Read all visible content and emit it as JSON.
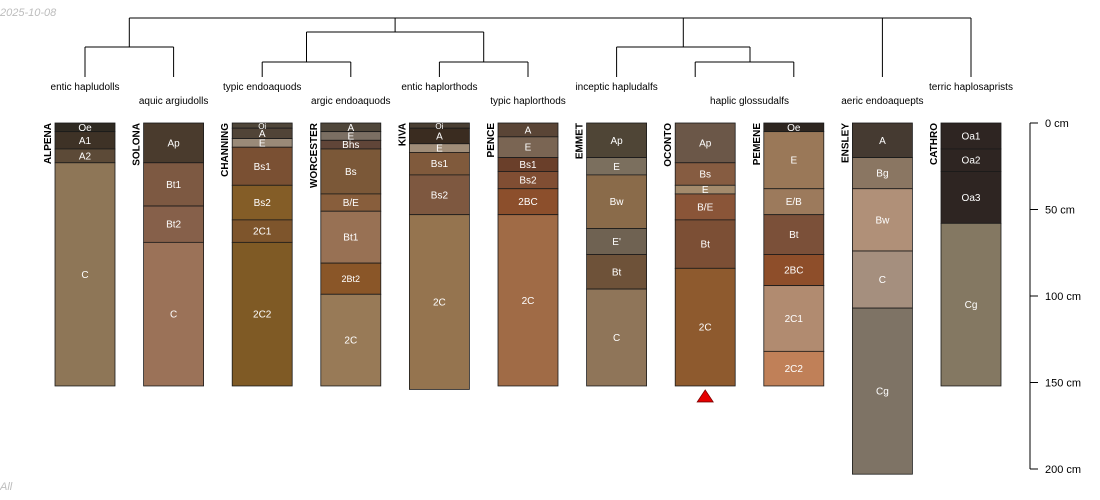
{
  "meta": {
    "date_stamp": "2025-10-08",
    "footer_stamp": "All",
    "marker_color": "#e60000"
  },
  "depth_axis": {
    "max_depth": 200,
    "ticks": [
      {
        "depth": 0,
        "label": "0 cm"
      },
      {
        "depth": 50,
        "label": "50 cm"
      },
      {
        "depth": 100,
        "label": "100 cm"
      },
      {
        "depth": 150,
        "label": "150 cm"
      },
      {
        "depth": 200,
        "label": "200 cm"
      }
    ]
  },
  "profiles": [
    {
      "name": "ALPENA",
      "taxon": "entic hapludolls",
      "horizons": [
        {
          "label": "Oe",
          "top": 0,
          "bottom": 5,
          "color": "#2f2a22"
        },
        {
          "label": "A1",
          "top": 5,
          "bottom": 15,
          "color": "#3e3226"
        },
        {
          "label": "A2",
          "top": 15,
          "bottom": 23,
          "color": "#5c4a37"
        },
        {
          "label": "C",
          "top": 23,
          "bottom": 152,
          "color": "#8e7657"
        }
      ]
    },
    {
      "name": "SOLONA",
      "taxon": "aquic argiudolls",
      "horizons": [
        {
          "label": "Ap",
          "top": 0,
          "bottom": 23,
          "color": "#4a3b2d"
        },
        {
          "label": "Bt1",
          "top": 23,
          "bottom": 48,
          "color": "#7d5942"
        },
        {
          "label": "Bt2",
          "top": 48,
          "bottom": 69,
          "color": "#86604a"
        },
        {
          "label": "C",
          "top": 69,
          "bottom": 152,
          "color": "#9b7258"
        }
      ]
    },
    {
      "name": "CHANNING",
      "taxon": "typic endoaquods",
      "horizons": [
        {
          "label": "Oi",
          "top": 0,
          "bottom": 3,
          "color": "#4f4639"
        },
        {
          "label": "A",
          "top": 3,
          "bottom": 9,
          "color": "#514437"
        },
        {
          "label": "E",
          "top": 9,
          "bottom": 14,
          "color": "#9a8a78"
        },
        {
          "label": "Bs1",
          "top": 14,
          "bottom": 36,
          "color": "#7a5033"
        },
        {
          "label": "Bs2",
          "top": 36,
          "bottom": 56,
          "color": "#845d27"
        },
        {
          "label": "2C1",
          "top": 56,
          "bottom": 69,
          "color": "#7e552c"
        },
        {
          "label": "2C2",
          "top": 69,
          "bottom": 152,
          "color": "#7f5a25"
        }
      ]
    },
    {
      "name": "WORCESTER",
      "taxon": "argic endoaquods",
      "horizons": [
        {
          "label": "A",
          "top": 0,
          "bottom": 5,
          "color": "#4f463a"
        },
        {
          "label": "E",
          "top": 5,
          "bottom": 10,
          "color": "#7b6f63"
        },
        {
          "label": "Bhs",
          "top": 10,
          "bottom": 15,
          "color": "#604538"
        },
        {
          "label": "Bs",
          "top": 15,
          "bottom": 41,
          "color": "#7b5838"
        },
        {
          "label": "B/E",
          "top": 41,
          "bottom": 51,
          "color": "#885e3c"
        },
        {
          "label": "Bt1",
          "top": 51,
          "bottom": 81,
          "color": "#987154"
        },
        {
          "label": "2Bt2",
          "top": 81,
          "bottom": 99,
          "color": "#8a5628"
        },
        {
          "label": "2C",
          "top": 99,
          "bottom": 152,
          "color": "#987a57"
        }
      ]
    },
    {
      "name": "KIVA",
      "taxon": "entic haplorthods",
      "horizons": [
        {
          "label": "Oi",
          "top": 0,
          "bottom": 3,
          "color": "#4a3f33"
        },
        {
          "label": "A",
          "top": 3,
          "bottom": 12,
          "color": "#3a2c20"
        },
        {
          "label": "E",
          "top": 12,
          "bottom": 17,
          "color": "#a08d78"
        },
        {
          "label": "Bs1",
          "top": 17,
          "bottom": 30,
          "color": "#805a3c"
        },
        {
          "label": "Bs2",
          "top": 30,
          "bottom": 53,
          "color": "#7e5840"
        },
        {
          "label": "2C",
          "top": 53,
          "bottom": 154,
          "color": "#95744f"
        }
      ]
    },
    {
      "name": "PENCE",
      "taxon": "typic haplorthods",
      "horizons": [
        {
          "label": "A",
          "top": 0,
          "bottom": 8,
          "color": "#5a4536"
        },
        {
          "label": "E",
          "top": 8,
          "bottom": 20,
          "color": "#7a6553"
        },
        {
          "label": "Bs1",
          "top": 20,
          "bottom": 28,
          "color": "#6a3f2a"
        },
        {
          "label": "Bs2",
          "top": 28,
          "bottom": 38,
          "color": "#804e33"
        },
        {
          "label": "2BC",
          "top": 38,
          "bottom": 53,
          "color": "#8c4f2c"
        },
        {
          "label": "2C",
          "top": 53,
          "bottom": 152,
          "color": "#a06b46"
        }
      ]
    },
    {
      "name": "EMMET",
      "taxon": "inceptic hapludalfs",
      "horizons": [
        {
          "label": "Ap",
          "top": 0,
          "bottom": 20,
          "color": "#4f4536"
        },
        {
          "label": "E",
          "top": 20,
          "bottom": 30,
          "color": "#7b6f5e"
        },
        {
          "label": "Bw",
          "top": 30,
          "bottom": 61,
          "color": "#8a6b4a"
        },
        {
          "label": "E'",
          "top": 61,
          "bottom": 76,
          "color": "#6f6252"
        },
        {
          "label": "Bt",
          "top": 76,
          "bottom": 96,
          "color": "#6e5239"
        },
        {
          "label": "C",
          "top": 96,
          "bottom": 152,
          "color": "#8f7559"
        }
      ]
    },
    {
      "name": "OCONTO",
      "taxon": "haplic glossudalfs",
      "marker": true,
      "horizons": [
        {
          "label": "Ap",
          "top": 0,
          "bottom": 23,
          "color": "#6b5748"
        },
        {
          "label": "Bs",
          "top": 23,
          "bottom": 36,
          "color": "#865c41"
        },
        {
          "label": "E",
          "top": 36,
          "bottom": 41,
          "color": "#a48b6c"
        },
        {
          "label": "B/E",
          "top": 41,
          "bottom": 56,
          "color": "#8a5538"
        },
        {
          "label": "Bt",
          "top": 56,
          "bottom": 84,
          "color": "#7c4f35"
        },
        {
          "label": "2C",
          "top": 84,
          "bottom": 152,
          "color": "#8e5a2e"
        }
      ]
    },
    {
      "name": "PEMENE",
      "taxon": "haplic glossudalfs",
      "horizons": [
        {
          "label": "Oe",
          "top": 0,
          "bottom": 5,
          "color": "#2e2620"
        },
        {
          "label": "E",
          "top": 5,
          "bottom": 38,
          "color": "#9a7858"
        },
        {
          "label": "E/B",
          "top": 38,
          "bottom": 53,
          "color": "#9c7a5c"
        },
        {
          "label": "Bt",
          "top": 53,
          "bottom": 76,
          "color": "#7b5039"
        },
        {
          "label": "2BC",
          "top": 76,
          "bottom": 94,
          "color": "#8e4e2a"
        },
        {
          "label": "2C1",
          "top": 94,
          "bottom": 132,
          "color": "#b18b70"
        },
        {
          "label": "2C2",
          "top": 132,
          "bottom": 152,
          "color": "#c08058"
        }
      ]
    },
    {
      "name": "ENSLEY",
      "taxon": "aeric endoaquepts",
      "horizons": [
        {
          "label": "A",
          "top": 0,
          "bottom": 20,
          "color": "#453a31"
        },
        {
          "label": "Bg",
          "top": 20,
          "bottom": 38,
          "color": "#8a7662"
        },
        {
          "label": "Bw",
          "top": 38,
          "bottom": 74,
          "color": "#b09078"
        },
        {
          "label": "C",
          "top": 74,
          "bottom": 107,
          "color": "#a58f7e"
        },
        {
          "label": "Cg",
          "top": 107,
          "bottom": 203,
          "color": "#7e7365"
        }
      ]
    },
    {
      "name": "CATHRO",
      "taxon": "terric haplosaprists",
      "horizons": [
        {
          "label": "Oa1",
          "top": 0,
          "bottom": 15,
          "color": "#2e2522"
        },
        {
          "label": "Oa2",
          "top": 15,
          "bottom": 28,
          "color": "#2e2522"
        },
        {
          "label": "Oa3",
          "top": 28,
          "bottom": 58,
          "color": "#2e2522"
        },
        {
          "label": "Cg",
          "top": 58,
          "bottom": 152,
          "color": "#847862"
        }
      ]
    }
  ]
}
